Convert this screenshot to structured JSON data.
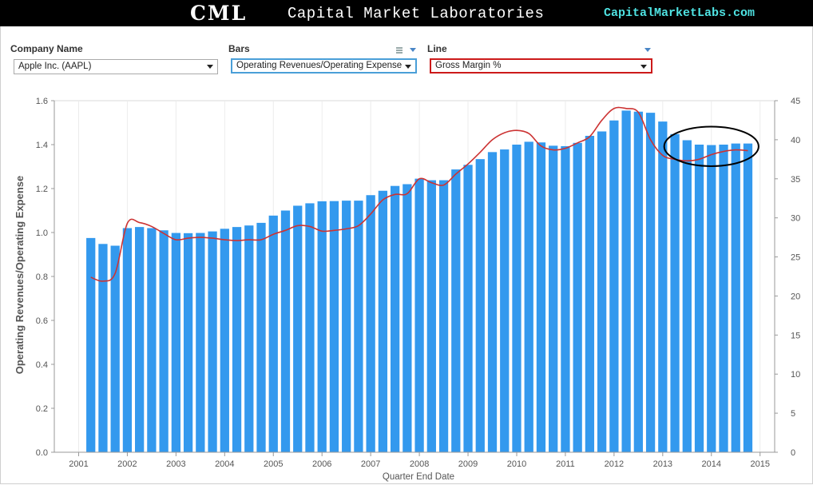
{
  "header": {
    "logo_text": "CML",
    "title": "Capital Market Laboratories",
    "site": "CapitalMarketLabs.com"
  },
  "controls": {
    "company": {
      "label": "Company Name",
      "value": "Apple Inc. (AAPL)"
    },
    "bars": {
      "label": "Bars",
      "value": "Operating Revenues/Operating Expense"
    },
    "line": {
      "label": "Line",
      "value": "Gross Margin %"
    }
  },
  "colors": {
    "bars": "#3399ee",
    "line": "#cc3333",
    "header_bg": "#000000",
    "site_link": "#4fe3e3"
  },
  "chart_data": {
    "type": "bar",
    "xlabel": "Quarter End Date",
    "ylabel": "Operating Revenues/Operating Expense",
    "ylabel_right": "",
    "ylim": [
      0,
      1.6
    ],
    "ylim_right": [
      0,
      45
    ],
    "yticks": [
      0.0,
      0.2,
      0.4,
      0.6,
      0.8,
      1.0,
      1.2,
      1.4,
      1.6
    ],
    "yticks_right": [
      0,
      5,
      10,
      15,
      20,
      25,
      30,
      35,
      40,
      45
    ],
    "xlim": [
      2000.5,
      2015.3
    ],
    "xticks": [
      2001,
      2002,
      2003,
      2004,
      2005,
      2006,
      2007,
      2008,
      2009,
      2010,
      2011,
      2012,
      2013,
      2014,
      2015
    ],
    "grid": true,
    "bars": {
      "name": "Operating Revenues/Operating Expense",
      "x": [
        2001.25,
        2001.5,
        2001.75,
        2002.0,
        2002.25,
        2002.5,
        2002.75,
        2003.0,
        2003.25,
        2003.5,
        2003.75,
        2004.0,
        2004.25,
        2004.5,
        2004.75,
        2005.0,
        2005.25,
        2005.5,
        2005.75,
        2006.0,
        2006.25,
        2006.5,
        2006.75,
        2007.0,
        2007.25,
        2007.5,
        2007.75,
        2008.0,
        2008.25,
        2008.5,
        2008.75,
        2009.0,
        2009.25,
        2009.5,
        2009.75,
        2010.0,
        2010.25,
        2010.5,
        2010.75,
        2011.0,
        2011.25,
        2011.5,
        2011.75,
        2012.0,
        2012.25,
        2012.5,
        2012.75,
        2013.0,
        2013.25,
        2013.5,
        2013.75,
        2014.0,
        2014.25,
        2014.5,
        2014.75
      ],
      "values": [
        0.975,
        0.948,
        0.94,
        1.02,
        1.025,
        1.02,
        1.01,
        0.998,
        0.997,
        0.998,
        1.005,
        1.017,
        1.025,
        1.032,
        1.044,
        1.077,
        1.1,
        1.122,
        1.133,
        1.142,
        1.143,
        1.145,
        1.145,
        1.17,
        1.19,
        1.212,
        1.22,
        1.245,
        1.238,
        1.238,
        1.287,
        1.308,
        1.334,
        1.366,
        1.378,
        1.4,
        1.413,
        1.41,
        1.395,
        1.393,
        1.408,
        1.44,
        1.46,
        1.51,
        1.555,
        1.55,
        1.545,
        1.505,
        1.448,
        1.42,
        1.4,
        1.398,
        1.4,
        1.405,
        1.405
      ]
    },
    "line": {
      "name": "Gross Margin %",
      "x": [
        2001.25,
        2001.5,
        2001.75,
        2002.0,
        2002.25,
        2002.5,
        2002.75,
        2003.0,
        2003.25,
        2003.5,
        2003.75,
        2004.0,
        2004.25,
        2004.5,
        2004.75,
        2005.0,
        2005.25,
        2005.5,
        2005.75,
        2006.0,
        2006.25,
        2006.5,
        2006.75,
        2007.0,
        2007.25,
        2007.5,
        2007.75,
        2008.0,
        2008.25,
        2008.5,
        2008.75,
        2009.0,
        2009.25,
        2009.5,
        2009.75,
        2010.0,
        2010.25,
        2010.5,
        2010.75,
        2011.0,
        2011.25,
        2011.5,
        2011.75,
        2012.0,
        2012.25,
        2012.5,
        2012.75,
        2013.0,
        2013.25,
        2013.5,
        2013.75,
        2014.0,
        2014.25,
        2014.5,
        2014.75
      ],
      "values": [
        22.4,
        21.9,
        22.9,
        29.3,
        29.4,
        28.9,
        28.0,
        27.2,
        27.4,
        27.5,
        27.4,
        27.2,
        27.1,
        27.2,
        27.2,
        27.9,
        28.4,
        29.0,
        28.9,
        28.3,
        28.4,
        28.6,
        29.0,
        30.5,
        32.3,
        33.0,
        33.1,
        35.0,
        34.5,
        34.2,
        35.6,
        36.9,
        38.4,
        40.0,
        40.9,
        41.2,
        40.8,
        39.2,
        38.7,
        38.9,
        39.6,
        40.4,
        42.5,
        44.0,
        44.0,
        43.5,
        40.0,
        38.0,
        37.5,
        37.3,
        37.5,
        38.1,
        38.5,
        38.7,
        38.6
      ]
    },
    "annotation": {
      "shape": "ellipse",
      "center_x": 2014.0,
      "center_y": 1.392,
      "rx_years": 0.97,
      "ry": 0.09
    }
  }
}
